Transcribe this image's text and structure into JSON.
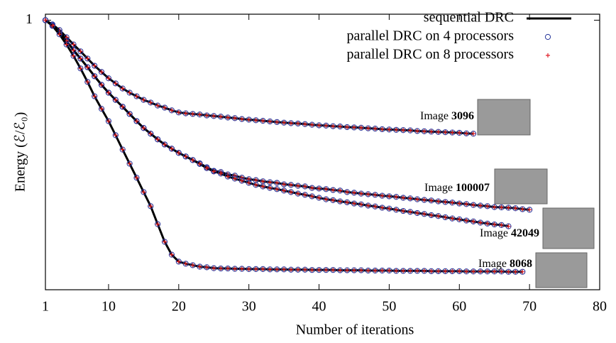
{
  "chart_data": {
    "type": "line",
    "xlabel": "Number of iterations",
    "ylabel": "Energy (ℰ/ℰ₀)",
    "xlim": [
      1,
      80
    ],
    "xticks": [
      1,
      10,
      20,
      30,
      40,
      50,
      60,
      70,
      80
    ],
    "ylim": [
      0.1,
      1.02
    ],
    "yticks": [
      1
    ],
    "legend": "upper right",
    "series": [
      {
        "name": "sequential DRC",
        "color": "#000000",
        "marker": "line"
      },
      {
        "name": "parallel DRC on 4 processors",
        "color": "#24349a",
        "marker": "circle"
      },
      {
        "name": "parallel DRC on 8 processors",
        "color": "#e0202a",
        "marker": "plus"
      }
    ],
    "x": [
      1,
      2,
      3,
      4,
      5,
      6,
      7,
      8,
      9,
      10,
      11,
      12,
      13,
      14,
      15,
      16,
      17,
      18,
      19,
      20,
      21,
      22,
      23,
      24,
      25,
      26,
      27,
      28,
      29,
      30,
      31,
      32,
      33,
      34,
      35,
      36,
      37,
      38,
      39,
      40,
      41,
      42,
      43,
      44,
      45,
      46,
      47,
      48,
      49,
      50,
      51,
      52,
      53,
      54,
      55,
      56,
      57,
      58,
      59,
      60,
      61,
      62,
      63,
      64,
      65,
      66,
      67,
      68,
      69,
      70
    ],
    "curves": [
      {
        "label": "Image",
        "id": "3096",
        "values": [
          1.0,
          0.986,
          0.967,
          0.943,
          0.919,
          0.896,
          0.872,
          0.848,
          0.827,
          0.806,
          0.789,
          0.772,
          0.758,
          0.746,
          0.734,
          0.725,
          0.715,
          0.708,
          0.699,
          0.692,
          0.689,
          0.687,
          0.685,
          0.682,
          0.68,
          0.678,
          0.675,
          0.673,
          0.67,
          0.668,
          0.666,
          0.664,
          0.662,
          0.66,
          0.658,
          0.656,
          0.655,
          0.653,
          0.651,
          0.649,
          0.648,
          0.646,
          0.645,
          0.643,
          0.642,
          0.641,
          0.639,
          0.638,
          0.636,
          0.635,
          0.634,
          0.633,
          0.632,
          0.63,
          0.629,
          0.628,
          0.627,
          0.626,
          0.625,
          0.624,
          0.622,
          0.621,
          null,
          null,
          null,
          null,
          null,
          null,
          null,
          null
        ]
      },
      {
        "label": "Image",
        "id": "100007",
        "values": [
          1.0,
          0.983,
          0.96,
          0.931,
          0.9,
          0.872,
          0.843,
          0.813,
          0.784,
          0.758,
          0.734,
          0.711,
          0.687,
          0.663,
          0.64,
          0.621,
          0.602,
          0.585,
          0.571,
          0.557,
          0.545,
          0.533,
          0.522,
          0.509,
          0.497,
          0.493,
          0.485,
          0.481,
          0.474,
          0.469,
          0.466,
          0.462,
          0.459,
          0.457,
          0.452,
          0.45,
          0.447,
          0.445,
          0.44,
          0.438,
          0.436,
          0.433,
          0.431,
          0.426,
          0.424,
          0.421,
          0.419,
          0.417,
          0.414,
          0.412,
          0.41,
          0.407,
          0.405,
          0.402,
          0.4,
          0.398,
          0.395,
          0.393,
          0.391,
          0.388,
          0.386,
          0.383,
          0.381,
          0.379,
          0.376,
          0.375,
          0.374,
          0.372,
          0.369,
          0.367
        ]
      },
      {
        "label": "Image",
        "id": "42049",
        "values": [
          1.0,
          0.983,
          0.96,
          0.931,
          0.9,
          0.872,
          0.843,
          0.813,
          0.784,
          0.758,
          0.734,
          0.711,
          0.687,
          0.663,
          0.64,
          0.621,
          0.602,
          0.585,
          0.571,
          0.557,
          0.545,
          0.533,
          0.52,
          0.506,
          0.495,
          0.488,
          0.478,
          0.471,
          0.464,
          0.457,
          0.45,
          0.445,
          0.44,
          0.436,
          0.431,
          0.426,
          0.421,
          0.417,
          0.412,
          0.407,
          0.402,
          0.399,
          0.395,
          0.392,
          0.388,
          0.385,
          0.381,
          0.378,
          0.374,
          0.371,
          0.367,
          0.363,
          0.36,
          0.356,
          0.353,
          0.349,
          0.346,
          0.342,
          0.338,
          0.335,
          0.331,
          0.328,
          0.324,
          0.321,
          0.318,
          0.316,
          0.312,
          null,
          null,
          null
        ]
      },
      {
        "label": "Image",
        "id": "8068",
        "values": [
          1.0,
          0.981,
          0.953,
          0.919,
          0.881,
          0.839,
          0.794,
          0.746,
          0.704,
          0.663,
          0.616,
          0.568,
          0.521,
          0.474,
          0.426,
          0.379,
          0.319,
          0.26,
          0.217,
          0.194,
          0.187,
          0.182,
          0.177,
          0.175,
          0.172,
          0.171,
          0.171,
          0.17,
          0.17,
          0.169,
          0.169,
          0.169,
          0.168,
          0.168,
          0.168,
          0.167,
          0.167,
          0.167,
          0.166,
          0.166,
          0.166,
          0.166,
          0.165,
          0.165,
          0.165,
          0.165,
          0.164,
          0.164,
          0.164,
          0.164,
          0.163,
          0.163,
          0.163,
          0.163,
          0.163,
          0.162,
          0.162,
          0.162,
          0.162,
          0.162,
          0.161,
          0.161,
          0.161,
          0.161,
          0.161,
          0.161,
          0.16,
          0.16,
          0.16,
          null
        ]
      }
    ]
  }
}
